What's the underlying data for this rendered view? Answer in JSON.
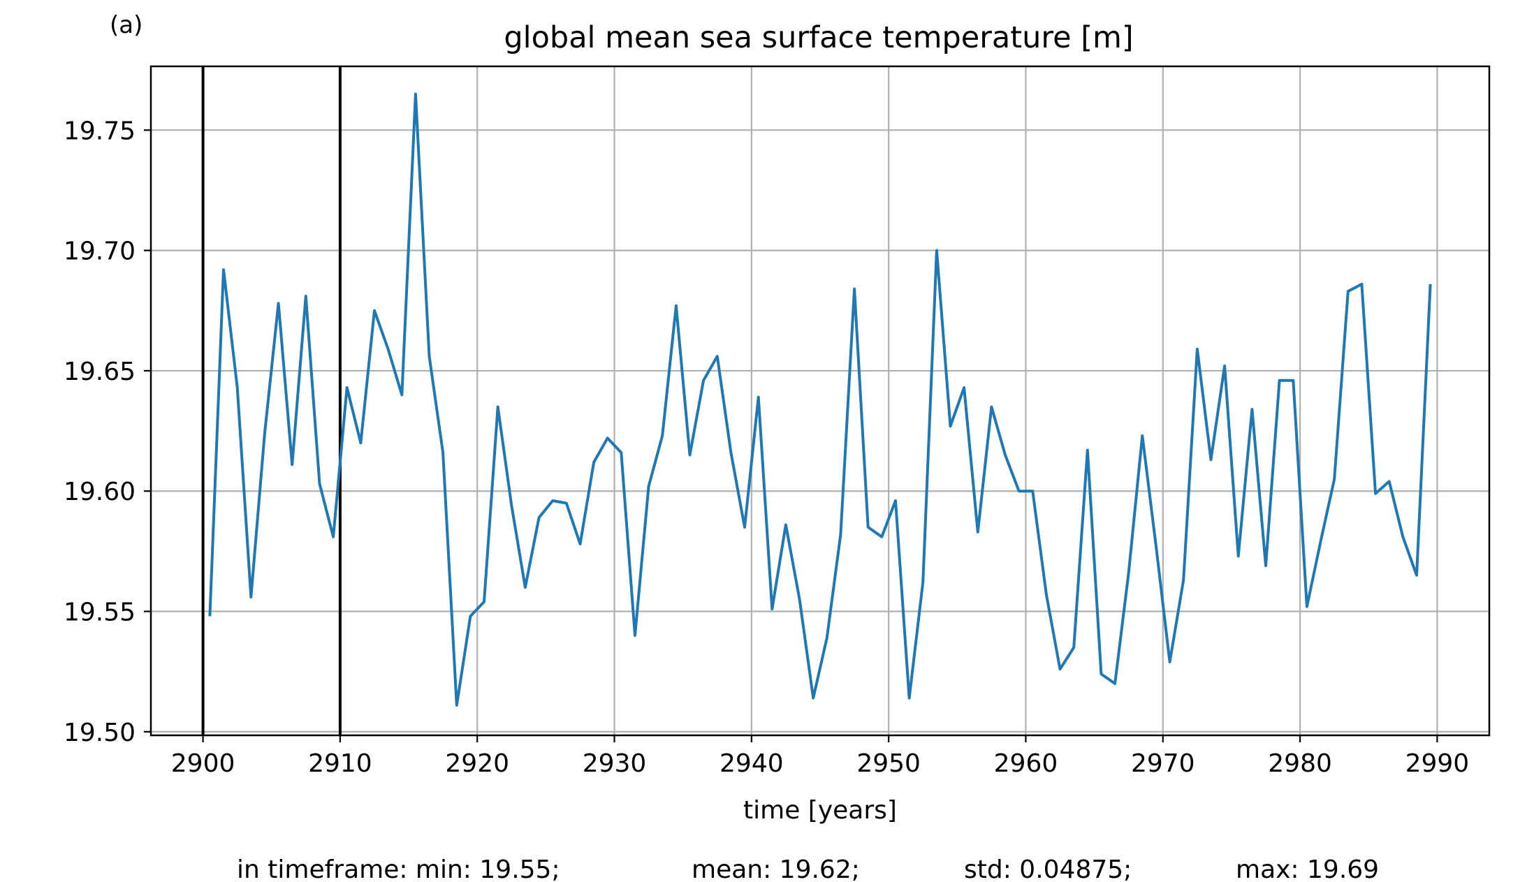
{
  "panel_label": "(a)",
  "chart_data": {
    "type": "line",
    "title": "global mean sea surface temperature [m]",
    "xlabel": "time [years]",
    "ylabel": "",
    "xlim": [
      2896.2,
      2993.8
    ],
    "ylim": [
      19.4985,
      19.7765
    ],
    "x_ticks": [
      2900,
      2910,
      2920,
      2930,
      2940,
      2950,
      2960,
      2970,
      2980,
      2990
    ],
    "y_ticks": [
      19.5,
      19.55,
      19.6,
      19.65,
      19.7,
      19.75
    ],
    "x_tick_labels": [
      "2900",
      "2910",
      "2920",
      "2930",
      "2940",
      "2950",
      "2960",
      "2970",
      "2980",
      "2990"
    ],
    "y_tick_labels": [
      "19.50",
      "19.55",
      "19.60",
      "19.65",
      "19.70",
      "19.75"
    ],
    "grid": true,
    "vertical_markers": [
      2900,
      2910
    ],
    "line_color": "#1f77b4",
    "series": [
      {
        "x": [
          2900.5,
          2901.5,
          2902.5,
          2903.5,
          2904.5,
          2905.5,
          2906.5,
          2907.5,
          2908.5,
          2909.5,
          2910.5,
          2911.5,
          2912.5,
          2913.5,
          2914.5,
          2915.5,
          2916.5,
          2917.5,
          2918.5,
          2919.5,
          2920.5,
          2921.5,
          2922.5,
          2923.5,
          2924.5,
          2925.5,
          2926.5,
          2927.5,
          2928.5,
          2929.5,
          2930.5,
          2931.5,
          2932.5,
          2933.5,
          2934.5,
          2935.5,
          2936.5,
          2937.5,
          2938.5,
          2939.5,
          2940.5,
          2941.5,
          2942.5,
          2943.5,
          2944.5,
          2945.5,
          2946.5,
          2947.5,
          2948.5,
          2949.5,
          2950.5,
          2951.5,
          2952.5,
          2953.5,
          2954.5,
          2955.5,
          2956.5,
          2957.5,
          2958.5,
          2959.5,
          2960.5,
          2961.5,
          2962.5,
          2963.5,
          2964.5,
          2965.5,
          2966.5,
          2967.5,
          2968.5,
          2969.5,
          2970.5,
          2971.5,
          2972.5,
          2973.5,
          2974.5,
          2975.5,
          2976.5,
          2977.5,
          2978.5,
          2979.5,
          2980.5,
          2981.5,
          2982.5,
          2983.5,
          2984.5,
          2985.5,
          2986.5,
          2987.5,
          2988.5,
          2989.5
        ],
        "y": [
          19.548,
          19.692,
          19.643,
          19.556,
          19.624,
          19.678,
          19.611,
          19.681,
          19.603,
          19.581,
          19.643,
          19.62,
          19.675,
          19.659,
          19.64,
          19.765,
          19.656,
          19.616,
          19.511,
          19.548,
          19.554,
          19.635,
          19.594,
          19.56,
          19.589,
          19.596,
          19.595,
          19.578,
          19.612,
          19.622,
          19.616,
          19.54,
          19.602,
          19.623,
          19.677,
          19.615,
          19.646,
          19.656,
          19.616,
          19.585,
          19.639,
          19.551,
          19.586,
          19.555,
          19.514,
          19.539,
          19.582,
          19.684,
          19.585,
          19.581,
          19.596,
          19.514,
          19.562,
          19.7,
          19.627,
          19.643,
          19.583,
          19.635,
          19.615,
          19.6,
          19.6,
          19.557,
          19.526,
          19.535,
          19.617,
          19.524,
          19.52,
          19.566,
          19.623,
          19.577,
          19.529,
          19.563,
          19.659,
          19.613,
          19.652,
          19.573,
          19.634,
          19.569,
          19.646,
          19.646,
          19.552,
          19.579,
          19.605,
          19.683,
          19.686,
          19.599,
          19.604,
          19.581,
          19.565,
          19.686
        ]
      }
    ]
  },
  "stats": {
    "min": "in timeframe: min: 19.55;",
    "mean": "mean: 19.62;",
    "std": "std: 0.04875;",
    "max": "max: 19.69"
  }
}
